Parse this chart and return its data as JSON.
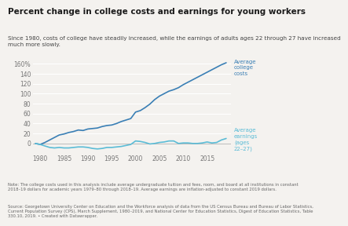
{
  "title": "Percent change in college costs and earnings for young workers",
  "subtitle": "Since 1980, costs of college have steadily increased, while the earnings of adults ages 22 through 27 have increased\nmuch more slowly.",
  "note": "Note: The college costs used in this analysis include average undergraduate tuition and fees, room, and board at all institutions in constant\n2018–19 dollars for academic years 1979–80 through 2018–19. Average earnings are inflation-adjusted to constant 2019 dollars.",
  "source": "Source: Georgetown University Center on Education and the Workforce analysis of data from the US Census Bureau and Bureau of Labor Statistics,\nCurrent Population Survey (CPS), March Supplement, 1980–2019, and National Center for Education Statistics, Digest of Education Statistics, Table\n330.10, 2019. • Created with Datawrapper.",
  "bg_color": "#f4f2ef",
  "plot_bg_color": "#f4f2ef",
  "college_color": "#3a7fb5",
  "earnings_color": "#5bbcd6",
  "label_college": "Average\ncollege\ncosts",
  "label_earnings": "Average\nearnings\n(ages\n22–27)",
  "years_college": [
    1979,
    1980,
    1981,
    1982,
    1983,
    1984,
    1985,
    1986,
    1987,
    1988,
    1989,
    1990,
    1991,
    1992,
    1993,
    1994,
    1995,
    1996,
    1997,
    1998,
    1999,
    2000,
    2001,
    2002,
    2003,
    2004,
    2005,
    2006,
    2007,
    2008,
    2009,
    2010,
    2011,
    2012,
    2013,
    2014,
    2015,
    2016,
    2017,
    2018,
    2019
  ],
  "college_pct": [
    0,
    -2,
    2,
    7,
    12,
    17,
    19,
    22,
    24,
    27,
    26,
    29,
    30,
    31,
    34,
    36,
    37,
    40,
    44,
    47,
    50,
    63,
    66,
    72,
    79,
    88,
    95,
    100,
    105,
    108,
    112,
    118,
    123,
    128,
    133,
    138,
    143,
    148,
    153,
    158,
    162
  ],
  "years_earnings": [
    1979,
    1980,
    1981,
    1982,
    1983,
    1984,
    1985,
    1986,
    1987,
    1988,
    1989,
    1990,
    1991,
    1992,
    1993,
    1994,
    1995,
    1996,
    1997,
    1998,
    1999,
    2000,
    2001,
    2002,
    2003,
    2004,
    2005,
    2006,
    2007,
    2008,
    2009,
    2010,
    2011,
    2012,
    2013,
    2014,
    2015,
    2016,
    2017,
    2018,
    2019
  ],
  "earnings_pct": [
    0,
    -2,
    -5,
    -8,
    -9,
    -8,
    -9,
    -9,
    -8,
    -7,
    -7,
    -8,
    -10,
    -11,
    -10,
    -8,
    -8,
    -7,
    -6,
    -4,
    -2,
    5,
    4,
    2,
    -1,
    0,
    2,
    3,
    5,
    5,
    0,
    1,
    1,
    0,
    0,
    1,
    3,
    1,
    2,
    7,
    10
  ],
  "xlim": [
    1978.5,
    2020
  ],
  "ylim": [
    -20,
    172
  ],
  "xticks": [
    1980,
    1985,
    1990,
    1995,
    2000,
    2005,
    2010,
    2015
  ],
  "yticks": [
    0,
    20,
    40,
    60,
    80,
    100,
    120,
    140,
    160
  ],
  "zero_line_color": "#bbbbbb",
  "grid_color": "#ffffff"
}
